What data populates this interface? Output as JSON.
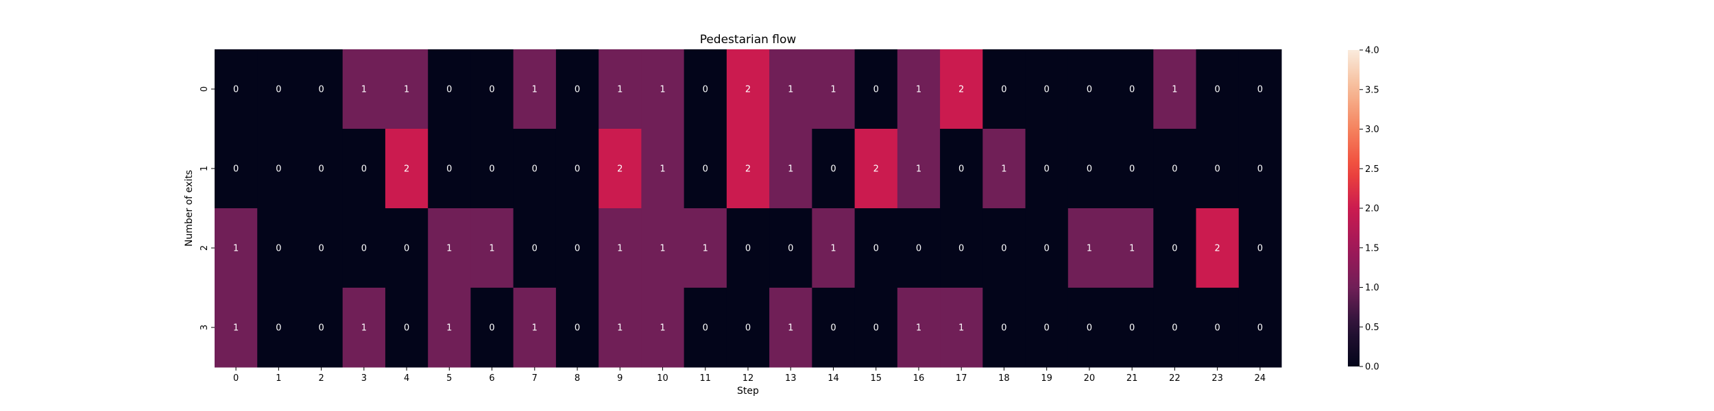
{
  "chart_data": {
    "type": "heatmap",
    "title": "Pedestarian flow",
    "xlabel": "Step",
    "ylabel": "Number of exits",
    "x": [
      "0",
      "1",
      "2",
      "3",
      "4",
      "5",
      "6",
      "7",
      "8",
      "9",
      "10",
      "11",
      "12",
      "13",
      "14",
      "15",
      "16",
      "17",
      "18",
      "19",
      "20",
      "21",
      "22",
      "23",
      "24"
    ],
    "y": [
      "0",
      "1",
      "2",
      "3"
    ],
    "values": [
      [
        0,
        0,
        0,
        1,
        1,
        0,
        0,
        1,
        0,
        1,
        1,
        0,
        2,
        1,
        1,
        0,
        1,
        2,
        0,
        0,
        0,
        0,
        1,
        0,
        0
      ],
      [
        0,
        0,
        0,
        0,
        2,
        0,
        0,
        0,
        0,
        2,
        1,
        0,
        2,
        1,
        0,
        2,
        1,
        0,
        1,
        0,
        0,
        0,
        0,
        0,
        0
      ],
      [
        1,
        0,
        0,
        0,
        0,
        1,
        1,
        0,
        0,
        1,
        1,
        1,
        0,
        0,
        1,
        0,
        0,
        0,
        0,
        0,
        1,
        1,
        0,
        2,
        0
      ],
      [
        1,
        0,
        0,
        1,
        0,
        1,
        0,
        1,
        0,
        1,
        1,
        0,
        0,
        1,
        0,
        0,
        1,
        1,
        0,
        0,
        0,
        0,
        0,
        0,
        0
      ]
    ],
    "colorbar": {
      "range": [
        0,
        4
      ],
      "ticks": [
        "0.0",
        "0.5",
        "1.0",
        "1.5",
        "2.0",
        "2.5",
        "3.0",
        "3.5",
        "4.0"
      ],
      "colormap": "rocket",
      "colors": {
        "0": "#03051a",
        "1": "#701f57",
        "2": "#cb1b4f",
        "4": "#faebdd"
      }
    },
    "annotations": true,
    "grid": false,
    "legend": "colorbar-right"
  }
}
